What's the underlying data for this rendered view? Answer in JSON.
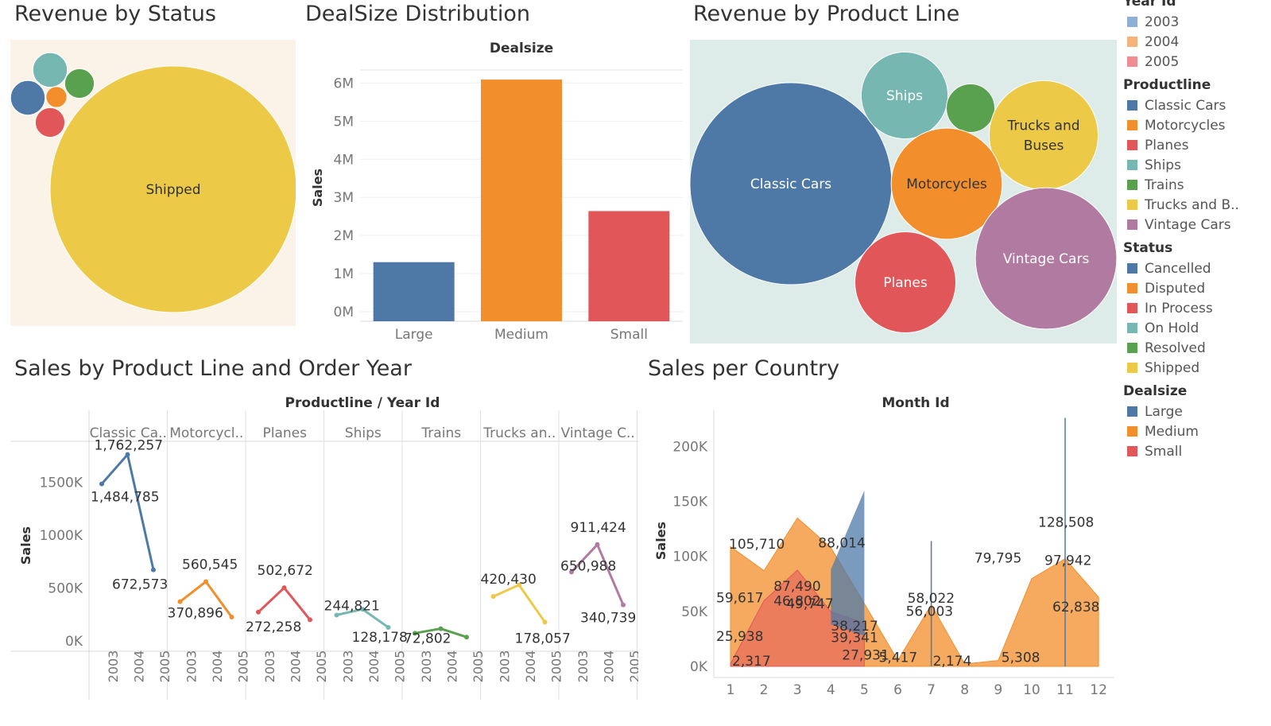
{
  "titles": {
    "status": "Revenue by Status",
    "dealsize": "DealSize Distribution",
    "productline": "Revenue by Product Line",
    "pl_year": "Sales by Product Line and Order Year",
    "country": "Sales per Country"
  },
  "colors": {
    "blue": "#4e79a7",
    "orange": "#f28e2b",
    "red": "#e15759",
    "teal": "#76b7b2",
    "green": "#59a14f",
    "yellow": "#edc948",
    "purple": "#b07aa1",
    "year2003": "#8fb0d6",
    "year2004": "#f5b27a",
    "year2005": "#ef8d93",
    "status_bg": "#fbf3e7",
    "product_bg": "#deece9"
  },
  "chart_data": [
    {
      "id": "status",
      "type": "bubble",
      "title": "Revenue by Status",
      "bubbles": [
        {
          "category": "Shipped",
          "label": "Shipped",
          "color": "yellow",
          "relative_size": 1.0
        },
        {
          "category": "On Hold",
          "label": "",
          "color": "teal",
          "relative_size": 0.14
        },
        {
          "category": "Resolved",
          "label": "",
          "color": "green",
          "relative_size": 0.12
        },
        {
          "category": "Cancelled",
          "label": "",
          "color": "blue",
          "relative_size": 0.14
        },
        {
          "category": "Disputed",
          "label": "",
          "color": "orange",
          "relative_size": 0.085
        },
        {
          "category": "In Process",
          "label": "",
          "color": "red",
          "relative_size": 0.12
        }
      ]
    },
    {
      "id": "dealsize",
      "type": "bar",
      "title": "DealSize Distribution",
      "header": "Dealsize",
      "ylabel": "Sales",
      "categories": [
        "Large",
        "Medium",
        "Small"
      ],
      "values": [
        1300000,
        6090000,
        2640000
      ],
      "colors": [
        "blue",
        "orange",
        "red"
      ],
      "ylim": [
        0,
        6300000
      ],
      "ticks": [
        {
          "v": 0,
          "t": "0M"
        },
        {
          "v": 1000000,
          "t": "1M"
        },
        {
          "v": 2000000,
          "t": "2M"
        },
        {
          "v": 3000000,
          "t": "3M"
        },
        {
          "v": 4000000,
          "t": "4M"
        },
        {
          "v": 5000000,
          "t": "5M"
        },
        {
          "v": 6000000,
          "t": "6M"
        }
      ]
    },
    {
      "id": "productline",
      "type": "bubble",
      "title": "Revenue by Product Line",
      "bubbles": [
        {
          "category": "Classic Cars",
          "label": "Classic Cars",
          "color": "blue",
          "relative_size": 1.0
        },
        {
          "category": "Ships",
          "label": "Ships",
          "color": "teal",
          "relative_size": 0.43
        },
        {
          "category": "Trains",
          "label": "",
          "color": "green",
          "relative_size": 0.24
        },
        {
          "category": "Trucks and Buses",
          "label": "Trucks and Buses",
          "color": "yellow",
          "relative_size": 0.54
        },
        {
          "category": "Motorcycles",
          "label": "Motorcycles",
          "color": "orange",
          "relative_size": 0.55
        },
        {
          "category": "Planes",
          "label": "Planes",
          "color": "red",
          "relative_size": 0.5
        },
        {
          "category": "Vintage Cars",
          "label": "Vintage Cars",
          "color": "purple",
          "relative_size": 0.7
        }
      ]
    },
    {
      "id": "pl_year",
      "type": "line",
      "title": "Sales by Product Line and Order Year",
      "header": "Productline  /  Year Id",
      "ylabel": "Sales",
      "x": [
        "2003",
        "2004",
        "2005"
      ],
      "ylim": [
        0,
        1850000
      ],
      "ticks": [
        {
          "v": 0,
          "t": "0K"
        },
        {
          "v": 500000,
          "t": "500K"
        },
        {
          "v": 1000000,
          "t": "1000K"
        },
        {
          "v": 1500000,
          "t": "1500K"
        }
      ],
      "series": [
        {
          "name": "Classic Ca..",
          "color": "blue",
          "values": [
            1484785,
            1762257,
            672573
          ],
          "labels": [
            "1,484,785",
            "1,762,257",
            "672,573"
          ]
        },
        {
          "name": "Motorcycl..",
          "color": "orange",
          "values": [
            370896,
            560545,
            226000
          ],
          "labels": [
            "370,896",
            "560,545",
            ""
          ]
        },
        {
          "name": "Planes",
          "color": "red",
          "values": [
            272258,
            502672,
            200000
          ],
          "labels": [
            "272,258",
            "502,672",
            ""
          ]
        },
        {
          "name": "Ships",
          "color": "teal",
          "values": [
            244821,
            300000,
            128178
          ],
          "labels": [
            "244,821",
            "",
            "128,178"
          ]
        },
        {
          "name": "Trains",
          "color": "green",
          "values": [
            72802,
            116000,
            36000
          ],
          "labels": [
            "72,802",
            "",
            ""
          ]
        },
        {
          "name": "Trucks an..",
          "color": "yellow",
          "values": [
            420430,
            529000,
            178057
          ],
          "labels": [
            "420,430",
            "",
            "178,057"
          ]
        },
        {
          "name": "Vintage C..",
          "color": "purple",
          "values": [
            650988,
            911424,
            340739
          ],
          "labels": [
            "650,988",
            "911,424",
            "340,739"
          ]
        }
      ]
    },
    {
      "id": "country",
      "type": "area",
      "title": "Sales per Country",
      "header": "Month Id",
      "ylabel": "Sales",
      "x": [
        1,
        2,
        3,
        4,
        5,
        6,
        7,
        8,
        9,
        10,
        11,
        12
      ],
      "ylim": [
        0,
        230000
      ],
      "ticks": [
        {
          "v": 0,
          "t": "0K"
        },
        {
          "v": 50000,
          "t": "50K"
        },
        {
          "v": 100000,
          "t": "100K"
        },
        {
          "v": 150000,
          "t": "150K"
        },
        {
          "v": 200000,
          "t": "200K"
        }
      ],
      "series": [
        {
          "name": "Medium",
          "color": "orange",
          "values": [
            {
              "x": 1,
              "y": 109000
            },
            {
              "x": 2,
              "y": 87000
            },
            {
              "x": 3,
              "y": 135000
            },
            {
              "x": 4,
              "y": 108000
            },
            {
              "x": 5,
              "y": 57000
            },
            {
              "x": 6,
              "y": 5417
            },
            {
              "x": 7,
              "y": 56003
            },
            {
              "x": 8,
              "y": 2174
            },
            {
              "x": 9,
              "y": 5308
            },
            {
              "x": 10,
              "y": 79795
            },
            {
              "x": 11,
              "y": 97942
            },
            {
              "x": 12,
              "y": 62838
            }
          ]
        },
        {
          "name": "Small",
          "color": "red",
          "values": [
            {
              "x": 1,
              "y": 2317
            },
            {
              "x": 2,
              "y": 59617
            },
            {
              "x": 3,
              "y": 87490
            },
            {
              "x": 4,
              "y": 49747
            },
            {
              "x": 5,
              "y": 39341
            }
          ]
        },
        {
          "name": "Large",
          "color": "blue",
          "values": [
            {
              "x": 4,
              "y": 88014,
              "y0": 38217
            },
            {
              "x": 5,
              "y": 160000,
              "y0": 27931
            }
          ]
        },
        {
          "name": "Large spike",
          "color": "blue",
          "values": [
            {
              "x": 7,
              "y": 114000
            },
            {
              "x": 11,
              "y": 226000
            }
          ]
        }
      ],
      "labels": [
        {
          "x": 1,
          "y": 105710,
          "t": "105,710"
        },
        {
          "x": 1,
          "y": 25938,
          "t": "25,938"
        },
        {
          "x": 1,
          "y": 59617,
          "t": "59,617"
        },
        {
          "x": 1,
          "y": 2317,
          "t": "2,317"
        },
        {
          "x": 3,
          "y": 46802,
          "t": "46,802"
        },
        {
          "x": 3,
          "y": 87490,
          "t": "87,490"
        },
        {
          "x": 3,
          "y": 49747,
          "t": "49,747"
        },
        {
          "x": 4,
          "y": 88014,
          "t": "88,014"
        },
        {
          "x": 4,
          "y": 38217,
          "t": "38,217"
        },
        {
          "x": 4,
          "y": 39341,
          "t": "39,341"
        },
        {
          "x": 4,
          "y": 27931,
          "t": "27,931"
        },
        {
          "x": 6,
          "y": 5417,
          "t": "5,417"
        },
        {
          "x": 7,
          "y": 58022,
          "t": "58,022"
        },
        {
          "x": 7,
          "y": 56003,
          "t": "56,003"
        },
        {
          "x": 7,
          "y": 2174,
          "t": "2,174"
        },
        {
          "x": 9,
          "y": 5308,
          "t": "5,308"
        },
        {
          "x": 9,
          "y": 79795,
          "t": "79,795"
        },
        {
          "x": 11,
          "y": 128508,
          "t": "128,508"
        },
        {
          "x": 11,
          "y": 97942,
          "t": "97,942"
        },
        {
          "x": 11,
          "y": 62838,
          "t": "62,838"
        }
      ]
    }
  ],
  "legends": [
    {
      "title": "Year Id",
      "items": [
        {
          "label": "2003",
          "color": "year2003"
        },
        {
          "label": "2004",
          "color": "year2004"
        },
        {
          "label": "2005",
          "color": "year2005"
        }
      ]
    },
    {
      "title": "Productline",
      "items": [
        {
          "label": "Classic Cars",
          "color": "blue"
        },
        {
          "label": "Motorcycles",
          "color": "orange"
        },
        {
          "label": "Planes",
          "color": "red"
        },
        {
          "label": "Ships",
          "color": "teal"
        },
        {
          "label": "Trains",
          "color": "green"
        },
        {
          "label": "Trucks and B..",
          "color": "yellow"
        },
        {
          "label": "Vintage Cars",
          "color": "purple"
        }
      ]
    },
    {
      "title": "Status",
      "items": [
        {
          "label": "Cancelled",
          "color": "blue"
        },
        {
          "label": "Disputed",
          "color": "orange"
        },
        {
          "label": "In Process",
          "color": "red"
        },
        {
          "label": "On Hold",
          "color": "teal"
        },
        {
          "label": "Resolved",
          "color": "green"
        },
        {
          "label": "Shipped",
          "color": "yellow"
        }
      ]
    },
    {
      "title": "Dealsize",
      "items": [
        {
          "label": "Large",
          "color": "blue"
        },
        {
          "label": "Medium",
          "color": "orange"
        },
        {
          "label": "Small",
          "color": "red"
        }
      ]
    }
  ]
}
